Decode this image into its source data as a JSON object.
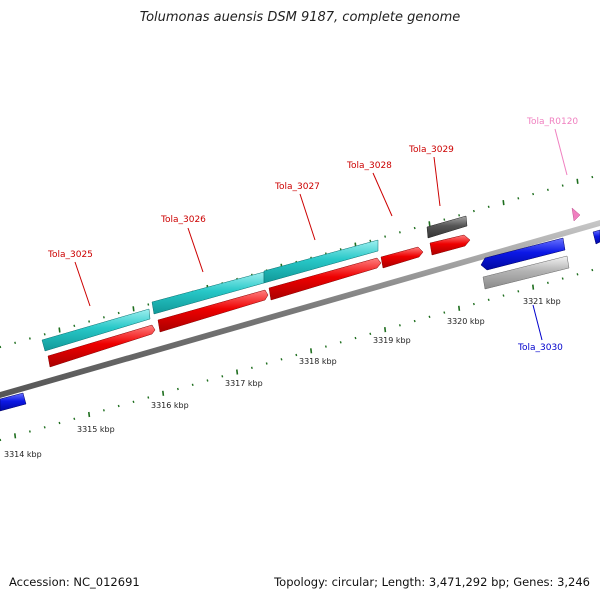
{
  "title": "Tolumonas auensis DSM 9187, complete genome",
  "footer": {
    "accession": "Accession: NC_012691",
    "summary": "Topology: circular; Length: 3,471,292 bp; Genes: 3,246"
  },
  "colors": {
    "forward_cds": "#28c8c8",
    "reverse_cds": "#ee0000",
    "blue_cds": "#0c18e6",
    "pseudo_gray": "#555555",
    "light_gray": "#b4b4b4",
    "rna_pink": "#f080c0",
    "backbone": "#808080",
    "tick_green": "#1e6e1e"
  },
  "axis": {
    "unit": "kbp",
    "labels": [
      "3314 kbp",
      "3315 kbp",
      "3316 kbp",
      "3317 kbp",
      "3318 kbp",
      "3319 kbp",
      "3320 kbp",
      "3321 kbp"
    ]
  },
  "genes": [
    {
      "label": "Tola_3025",
      "color": "#cc0000"
    },
    {
      "label": "Tola_3026",
      "color": "#cc0000"
    },
    {
      "label": "Tola_3027",
      "color": "#cc0000"
    },
    {
      "label": "Tola_3028",
      "color": "#cc0000"
    },
    {
      "label": "Tola_3029",
      "color": "#cc0000"
    },
    {
      "label": "Tola_R0120",
      "color": "#f080c0"
    },
    {
      "label": "Tola_3030",
      "color": "#0000cc"
    }
  ]
}
